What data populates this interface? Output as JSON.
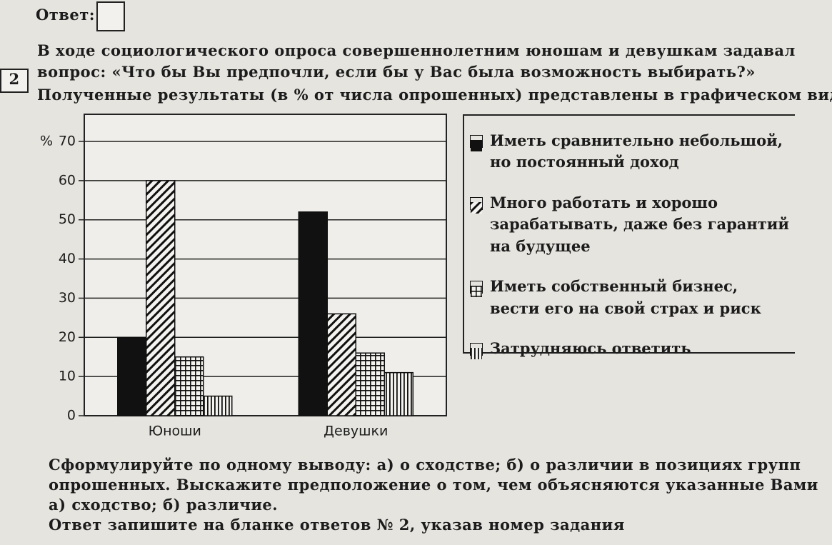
{
  "header": {
    "answer_label": "Ответ:",
    "task_number": "2",
    "question_lines": [
      "В ходе социологического опроса совершеннолетним юношам и девушкам задавал",
      "вопрос: «Что бы Вы предпочли, если бы у Вас была возможность выбирать?»",
      "Полученные результаты (в % от числа опрошенных) представлены в графическом виде"
    ]
  },
  "chart_data": {
    "type": "bar",
    "y_label": "%",
    "categories": [
      "Юноши",
      "Девушки"
    ],
    "series": [
      {
        "name": "Иметь сравнительно небольшой, но постоянный доход",
        "color": "#111111",
        "pattern": "solid",
        "values": [
          20,
          52
        ]
      },
      {
        "name": "Много работать и хорошо зарабатывать, даже без гарантий на будущее",
        "color": "#111111",
        "pattern": "diagonal",
        "values": [
          60,
          26
        ]
      },
      {
        "name": "Иметь собственный бизнес, вести его на свой страх и риск",
        "color": "#111111",
        "pattern": "grid",
        "values": [
          15,
          16
        ]
      },
      {
        "name": "Затрудняюсь ответить",
        "color": "#111111",
        "pattern": "vertical",
        "values": [
          5,
          11
        ]
      }
    ],
    "ylim": [
      0,
      70
    ],
    "yticks": [
      0,
      10,
      20,
      30,
      40,
      50,
      60,
      70
    ],
    "grid": true
  },
  "footer": {
    "lines": [
      "Сформулируйте по одному выводу: а) о сходстве; б) о различии в позициях групп",
      "опрошенных. Выскажите предположение о том, чем объясняются указанные Вами",
      "а) сходство; б) различие.",
      "Ответ запишите на бланке ответов № 2, указав номер задания"
    ]
  }
}
